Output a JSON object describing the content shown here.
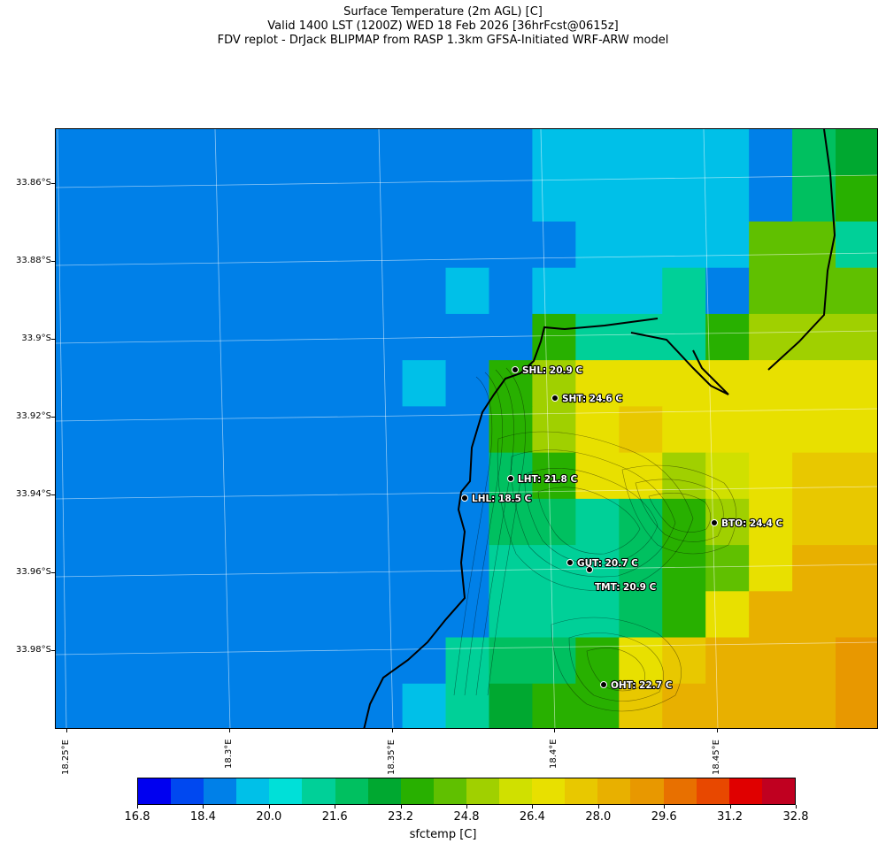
{
  "title": {
    "line1": "Surface Temperature (2m AGL) [C]",
    "line2": "Valid 1400 LST (1200Z) WED 18 Feb 2026 [36hrFcst@0615z]",
    "line3": "FDV replot - DrJack BLIPMAP from RASP 1.3km GFSA-Initiated WRF-ARW model"
  },
  "latitude_labels": [
    "33.86°S",
    "33.88°S",
    "33.9°S",
    "33.92°S",
    "33.94°S",
    "33.96°S",
    "33.98°S"
  ],
  "longitude_labels": [
    "18.25°E",
    "18.3°E",
    "18.35°E",
    "18.4°E",
    "18.45°E"
  ],
  "stations": [
    {
      "id": "SHL",
      "text": "SHL: 20.9 C",
      "temp_c": 20.9
    },
    {
      "id": "SHT",
      "text": "SHT: 24.6 C",
      "temp_c": 24.6
    },
    {
      "id": "LHT",
      "text": "LHT: 21.8 C",
      "temp_c": 21.8
    },
    {
      "id": "LHL",
      "text": "LHL: 18.5 C",
      "temp_c": 18.5
    },
    {
      "id": "BTO",
      "text": "BTO: 24.4 C",
      "temp_c": 24.4
    },
    {
      "id": "GUT",
      "text": "GUT: 20.7 C",
      "temp_c": 20.7
    },
    {
      "id": "TMT",
      "text": "TMT: 20.9 C",
      "temp_c": 20.9
    },
    {
      "id": "OHT",
      "text": "OHT: 22.7 C",
      "temp_c": 22.7
    }
  ],
  "colorbar": {
    "label": "sfctemp [C]",
    "tick_labels": [
      "16.8",
      "18.4",
      "20.0",
      "21.6",
      "23.2",
      "24.8",
      "26.4",
      "28.0",
      "29.6",
      "31.2",
      "32.8"
    ],
    "colors": [
      "#0000f0",
      "#0048f0",
      "#0080e8",
      "#00c0e8",
      "#00e0d8",
      "#00d098",
      "#00c060",
      "#00a830",
      "#28b000",
      "#60c000",
      "#a0d000",
      "#d0e000",
      "#e8e000",
      "#e8c800",
      "#e8b000",
      "#e89800",
      "#e87000",
      "#e84800",
      "#e00000",
      "#c00020"
    ]
  },
  "temperature_grid": {
    "note_units": "C",
    "rows": [
      [
        19.2,
        19.2,
        19.2,
        19.2,
        19.2,
        19.2,
        19.2,
        19.2,
        19.2,
        19.2,
        19.2,
        20.0,
        20.0,
        20.0,
        20.0,
        20.0,
        19.2,
        22.0,
        23.0
      ],
      [
        19.2,
        19.2,
        19.2,
        19.2,
        19.2,
        19.2,
        19.2,
        19.2,
        19.2,
        19.2,
        19.2,
        20.0,
        20.0,
        20.0,
        20.0,
        20.0,
        19.2,
        22.0,
        23.5
      ],
      [
        19.2,
        19.2,
        19.2,
        19.2,
        19.2,
        19.2,
        19.2,
        19.2,
        19.2,
        19.2,
        19.2,
        19.2,
        20.0,
        20.0,
        20.0,
        20.0,
        24.5,
        24.5,
        21.2
      ],
      [
        19.2,
        19.2,
        19.2,
        19.2,
        19.2,
        19.2,
        19.2,
        19.2,
        19.2,
        20.0,
        19.2,
        20.0,
        20.0,
        20.0,
        20.8,
        19.2,
        24.5,
        24.5,
        24.5
      ],
      [
        19.2,
        19.2,
        19.2,
        19.2,
        19.2,
        19.2,
        19.2,
        19.2,
        19.2,
        19.2,
        19.2,
        23.5,
        21.4,
        21.4,
        20.8,
        23.5,
        25.5,
        25.5,
        25.5
      ],
      [
        19.2,
        19.2,
        19.2,
        19.2,
        19.2,
        19.2,
        19.2,
        19.2,
        20.0,
        18.6,
        23.5,
        25.5,
        26.8,
        26.8,
        26.8,
        26.8,
        26.8,
        26.8,
        26.8
      ],
      [
        19.2,
        19.2,
        19.2,
        19.2,
        19.2,
        19.2,
        19.2,
        19.2,
        19.2,
        18.6,
        23.5,
        25.5,
        26.8,
        27.5,
        26.8,
        26.8,
        26.8,
        26.8,
        26.8
      ],
      [
        19.2,
        19.2,
        19.2,
        19.2,
        19.2,
        19.2,
        19.2,
        19.2,
        19.2,
        18.6,
        22.0,
        23.5,
        26.8,
        26.8,
        25.0,
        26.4,
        26.8,
        27.5,
        27.5
      ],
      [
        19.2,
        19.2,
        19.2,
        19.2,
        19.2,
        19.2,
        19.2,
        19.2,
        19.2,
        19.2,
        22.0,
        22.0,
        21.2,
        22.0,
        23.5,
        25.0,
        26.8,
        27.5,
        27.5
      ],
      [
        19.2,
        19.2,
        19.2,
        19.2,
        19.2,
        19.2,
        19.2,
        19.2,
        19.2,
        19.2,
        21.2,
        21.2,
        21.4,
        22.0,
        23.5,
        24.5,
        26.8,
        28.2,
        28.2
      ],
      [
        19.2,
        19.2,
        19.2,
        19.2,
        19.2,
        19.2,
        19.2,
        19.2,
        19.2,
        18.6,
        20.8,
        21.2,
        21.4,
        22.0,
        23.5,
        26.8,
        28.2,
        28.2,
        28.2
      ],
      [
        19.2,
        19.2,
        19.2,
        19.2,
        19.2,
        19.2,
        19.2,
        19.2,
        18.6,
        21.4,
        22.0,
        22.0,
        23.5,
        26.8,
        27.5,
        28.2,
        28.2,
        28.2,
        29.0
      ],
      [
        19.2,
        19.2,
        19.2,
        19.2,
        19.2,
        19.2,
        19.2,
        18.6,
        20.0,
        21.4,
        23.2,
        23.5,
        23.5,
        27.5,
        28.2,
        28.2,
        28.2,
        28.2,
        29.0
      ]
    ]
  }
}
